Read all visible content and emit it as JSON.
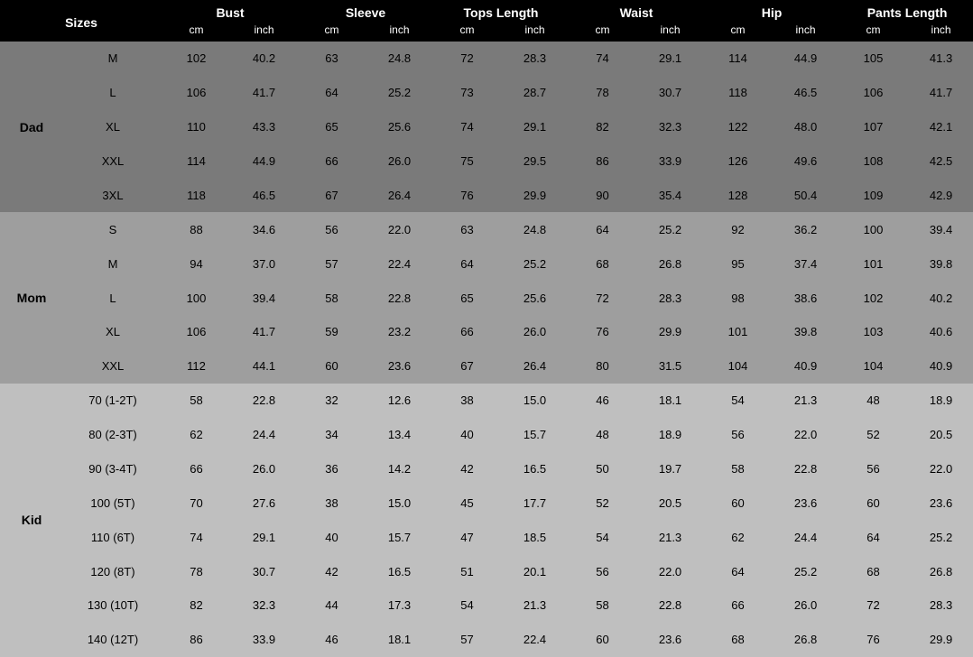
{
  "header": {
    "sizes_label": "Sizes",
    "measurements": [
      "Bust",
      "Sleeve",
      "Tops Length",
      "Waist",
      "Hip",
      "Pants Length"
    ],
    "units": [
      "cm",
      "inch"
    ]
  },
  "colors": {
    "header_bg": "#000000",
    "header_fg": "#ffffff",
    "dad_bg": "#7a7a7a",
    "mom_bg": "#9e9e9e",
    "kid_bg": "#bfbfbf",
    "text": "#000000"
  },
  "groups": [
    {
      "label": "Dad",
      "bg_key": "dad_bg",
      "rows": [
        {
          "size": "M",
          "vals": [
            "102",
            "40.2",
            "63",
            "24.8",
            "72",
            "28.3",
            "74",
            "29.1",
            "114",
            "44.9",
            "105",
            "41.3"
          ]
        },
        {
          "size": "L",
          "vals": [
            "106",
            "41.7",
            "64",
            "25.2",
            "73",
            "28.7",
            "78",
            "30.7",
            "118",
            "46.5",
            "106",
            "41.7"
          ]
        },
        {
          "size": "XL",
          "vals": [
            "110",
            "43.3",
            "65",
            "25.6",
            "74",
            "29.1",
            "82",
            "32.3",
            "122",
            "48.0",
            "107",
            "42.1"
          ]
        },
        {
          "size": "XXL",
          "vals": [
            "114",
            "44.9",
            "66",
            "26.0",
            "75",
            "29.5",
            "86",
            "33.9",
            "126",
            "49.6",
            "108",
            "42.5"
          ]
        },
        {
          "size": "3XL",
          "vals": [
            "118",
            "46.5",
            "67",
            "26.4",
            "76",
            "29.9",
            "90",
            "35.4",
            "128",
            "50.4",
            "109",
            "42.9"
          ]
        }
      ]
    },
    {
      "label": "Mom",
      "bg_key": "mom_bg",
      "rows": [
        {
          "size": "S",
          "vals": [
            "88",
            "34.6",
            "56",
            "22.0",
            "63",
            "24.8",
            "64",
            "25.2",
            "92",
            "36.2",
            "100",
            "39.4"
          ]
        },
        {
          "size": "M",
          "vals": [
            "94",
            "37.0",
            "57",
            "22.4",
            "64",
            "25.2",
            "68",
            "26.8",
            "95",
            "37.4",
            "101",
            "39.8"
          ]
        },
        {
          "size": "L",
          "vals": [
            "100",
            "39.4",
            "58",
            "22.8",
            "65",
            "25.6",
            "72",
            "28.3",
            "98",
            "38.6",
            "102",
            "40.2"
          ]
        },
        {
          "size": "XL",
          "vals": [
            "106",
            "41.7",
            "59",
            "23.2",
            "66",
            "26.0",
            "76",
            "29.9",
            "101",
            "39.8",
            "103",
            "40.6"
          ]
        },
        {
          "size": "XXL",
          "vals": [
            "112",
            "44.1",
            "60",
            "23.6",
            "67",
            "26.4",
            "80",
            "31.5",
            "104",
            "40.9",
            "104",
            "40.9"
          ]
        }
      ]
    },
    {
      "label": "Kid",
      "bg_key": "kid_bg",
      "rows": [
        {
          "size": "70 (1-2T)",
          "vals": [
            "58",
            "22.8",
            "32",
            "12.6",
            "38",
            "15.0",
            "46",
            "18.1",
            "54",
            "21.3",
            "48",
            "18.9"
          ]
        },
        {
          "size": "80 (2-3T)",
          "vals": [
            "62",
            "24.4",
            "34",
            "13.4",
            "40",
            "15.7",
            "48",
            "18.9",
            "56",
            "22.0",
            "52",
            "20.5"
          ]
        },
        {
          "size": "90 (3-4T)",
          "vals": [
            "66",
            "26.0",
            "36",
            "14.2",
            "42",
            "16.5",
            "50",
            "19.7",
            "58",
            "22.8",
            "56",
            "22.0"
          ]
        },
        {
          "size": "100 (5T)",
          "vals": [
            "70",
            "27.6",
            "38",
            "15.0",
            "45",
            "17.7",
            "52",
            "20.5",
            "60",
            "23.6",
            "60",
            "23.6"
          ]
        },
        {
          "size": "110 (6T)",
          "vals": [
            "74",
            "29.1",
            "40",
            "15.7",
            "47",
            "18.5",
            "54",
            "21.3",
            "62",
            "24.4",
            "64",
            "25.2"
          ]
        },
        {
          "size": "120 (8T)",
          "vals": [
            "78",
            "30.7",
            "42",
            "16.5",
            "51",
            "20.1",
            "56",
            "22.0",
            "64",
            "25.2",
            "68",
            "26.8"
          ]
        },
        {
          "size": "130 (10T)",
          "vals": [
            "82",
            "32.3",
            "44",
            "17.3",
            "54",
            "21.3",
            "58",
            "22.8",
            "66",
            "26.0",
            "72",
            "28.3"
          ]
        },
        {
          "size": "140 (12T)",
          "vals": [
            "86",
            "33.9",
            "46",
            "18.1",
            "57",
            "22.4",
            "60",
            "23.6",
            "68",
            "26.8",
            "76",
            "29.9"
          ]
        }
      ]
    }
  ]
}
